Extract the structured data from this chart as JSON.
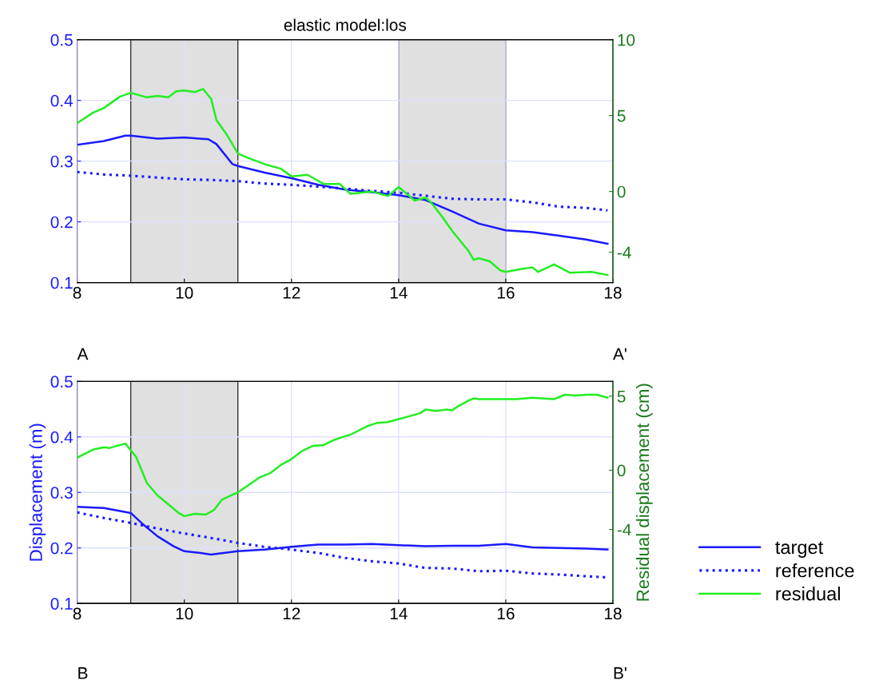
{
  "chart_data": [
    {
      "type": "line",
      "title": "elastic model:los",
      "xlim": [
        8,
        18
      ],
      "xticks": [
        8,
        10,
        12,
        14,
        16,
        18
      ],
      "ylim": [
        0.1,
        0.5
      ],
      "yticks": [
        0.1,
        0.2,
        0.3,
        0.4,
        0.5
      ],
      "y2lim": [
        -6,
        10
      ],
      "y2ticks": [
        -4,
        0,
        5,
        10
      ],
      "grid": true,
      "bands": [
        {
          "axis": "x",
          "from": 9,
          "to": 11,
          "color": "#e0e0e0"
        },
        {
          "axis": "x",
          "from": 14,
          "to": 16,
          "color": "#e0e0e0"
        }
      ],
      "annotations": [
        "A",
        "A'"
      ],
      "series": [
        {
          "color": "#1a1aff",
          "line_style": "solid",
          "x": [
            8,
            8.5,
            8.9,
            9,
            9.5,
            10,
            10.45,
            10.6,
            10.9,
            11,
            11.5,
            12,
            12.5,
            13,
            13.5,
            14,
            14.5,
            15,
            15.5,
            16,
            16.5,
            17,
            17.5,
            17.9
          ],
          "values": [
            0.327,
            0.333,
            0.342,
            0.342,
            0.337,
            0.339,
            0.336,
            0.328,
            0.295,
            0.292,
            0.281,
            0.272,
            0.261,
            0.253,
            0.249,
            0.244,
            0.236,
            0.217,
            0.197,
            0.186,
            0.183,
            0.177,
            0.171,
            0.164
          ]
        },
        {
          "color": "#1a1aff",
          "line_style": "dotted",
          "x": [
            8,
            8.5,
            9,
            9.5,
            10,
            10.5,
            11,
            11.5,
            12,
            12.5,
            13,
            13.5,
            14,
            14.5,
            15,
            15.5,
            16,
            16.5,
            17,
            17.5,
            17.9
          ],
          "values": [
            0.282,
            0.278,
            0.276,
            0.273,
            0.27,
            0.269,
            0.267,
            0.263,
            0.261,
            0.258,
            0.255,
            0.251,
            0.248,
            0.243,
            0.238,
            0.237,
            0.237,
            0.232,
            0.225,
            0.223,
            0.219
          ]
        },
        {
          "color": "#22ee22",
          "line_style": "solid",
          "axis": "y2",
          "x": [
            8,
            8.3,
            8.5,
            8.8,
            9,
            9.3,
            9.5,
            9.7,
            9.85,
            10,
            10.2,
            10.35,
            10.5,
            10.6,
            10.8,
            11,
            11.2,
            11.5,
            11.8,
            12,
            12.3,
            12.6,
            12.9,
            13.1,
            13.5,
            13.8,
            14,
            14.3,
            14.5,
            14.6,
            14.8,
            15,
            15.3,
            15.4,
            15.5,
            15.7,
            15.9,
            16,
            16.3,
            16.5,
            16.6,
            16.9,
            17.2,
            17.6,
            17.9
          ],
          "values": [
            4.5,
            5.2,
            5.5,
            6.25,
            6.5,
            6.2,
            6.3,
            6.2,
            6.6,
            6.65,
            6.55,
            6.75,
            6.1,
            4.7,
            3.7,
            2.5,
            2.2,
            1.8,
            1.5,
            1.0,
            1.1,
            0.5,
            0.5,
            -0.15,
            0,
            -0.3,
            0.3,
            -0.6,
            -0.4,
            -0.7,
            -1.6,
            -2.6,
            -3.9,
            -4.5,
            -4.4,
            -4.6,
            -5.2,
            -5.3,
            -5.1,
            -5.0,
            -5.3,
            -4.8,
            -5.35,
            -5.3,
            -5.5
          ]
        }
      ]
    },
    {
      "type": "line",
      "xlim": [
        8,
        18
      ],
      "xticks": [
        8,
        10,
        12,
        14,
        16,
        18
      ],
      "ylim": [
        0.1,
        0.5
      ],
      "yticks": [
        0.1,
        0.2,
        0.3,
        0.4,
        0.5
      ],
      "y2lim": [
        -9,
        6
      ],
      "y2ticks": [
        -4,
        0,
        5
      ],
      "grid": true,
      "legend": "right",
      "ylabel": "Displacement (m)",
      "y2label": "Residual displacement (cm)",
      "bands": [
        {
          "axis": "x",
          "from": 9,
          "to": 11,
          "color": "#e0e0e0"
        }
      ],
      "annotations": [
        "B",
        "B'"
      ],
      "series": [
        {
          "name": "target",
          "color": "#1a1aff",
          "line_style": "solid",
          "x": [
            8,
            8.5,
            9,
            9.2,
            9.5,
            9.8,
            10,
            10.3,
            10.5,
            11,
            11.5,
            12,
            12.5,
            13,
            13.5,
            14,
            14.5,
            15,
            15.5,
            16,
            16.5,
            17,
            17.5,
            17.9
          ],
          "values": [
            0.274,
            0.272,
            0.263,
            0.245,
            0.221,
            0.203,
            0.194,
            0.191,
            0.188,
            0.194,
            0.197,
            0.202,
            0.206,
            0.206,
            0.207,
            0.205,
            0.203,
            0.204,
            0.204,
            0.207,
            0.201,
            0.2,
            0.199,
            0.197
          ]
        },
        {
          "name": "reference",
          "color": "#1a1aff",
          "line_style": "dotted",
          "x": [
            8,
            8.5,
            9,
            9.5,
            10,
            10.5,
            11,
            11.5,
            12,
            12.5,
            13,
            13.5,
            14,
            14.5,
            15,
            15.5,
            16,
            16.5,
            17,
            17.5,
            17.9
          ],
          "values": [
            0.264,
            0.254,
            0.245,
            0.235,
            0.226,
            0.218,
            0.209,
            0.202,
            0.197,
            0.191,
            0.182,
            0.176,
            0.172,
            0.164,
            0.163,
            0.158,
            0.159,
            0.154,
            0.152,
            0.149,
            0.147
          ]
        },
        {
          "name": "residual",
          "color": "#22ee22",
          "line_style": "solid",
          "axis": "y2",
          "x": [
            8,
            8.3,
            8.5,
            8.6,
            8.9,
            9.1,
            9.3,
            9.5,
            9.7,
            9.9,
            10,
            10.2,
            10.4,
            10.55,
            10.7,
            10.9,
            11,
            11.2,
            11.4,
            11.6,
            11.8,
            12,
            12.2,
            12.4,
            12.6,
            12.8,
            13,
            13.1,
            13.4,
            13.6,
            13.8,
            14,
            14.2,
            14.4,
            14.5,
            14.7,
            14.9,
            15,
            15.1,
            15.3,
            15.4,
            15.5,
            16,
            16.2,
            16.5,
            16.9,
            17.1,
            17.3,
            17.5,
            17.7,
            17.9
          ],
          "values": [
            0.85,
            1.4,
            1.55,
            1.5,
            1.8,
            0.9,
            -0.85,
            -1.7,
            -2.3,
            -2.9,
            -3.1,
            -2.95,
            -3.0,
            -2.7,
            -2.0,
            -1.65,
            -1.5,
            -1.0,
            -0.5,
            -0.2,
            0.35,
            0.75,
            1.3,
            1.65,
            1.7,
            2.05,
            2.3,
            2.4,
            2.95,
            3.2,
            3.25,
            3.45,
            3.65,
            3.85,
            4.1,
            4.0,
            4.1,
            4.05,
            4.3,
            4.7,
            4.85,
            4.8,
            4.8,
            4.8,
            4.9,
            4.8,
            5.1,
            5.05,
            5.1,
            5.1,
            4.9
          ]
        }
      ]
    }
  ]
}
